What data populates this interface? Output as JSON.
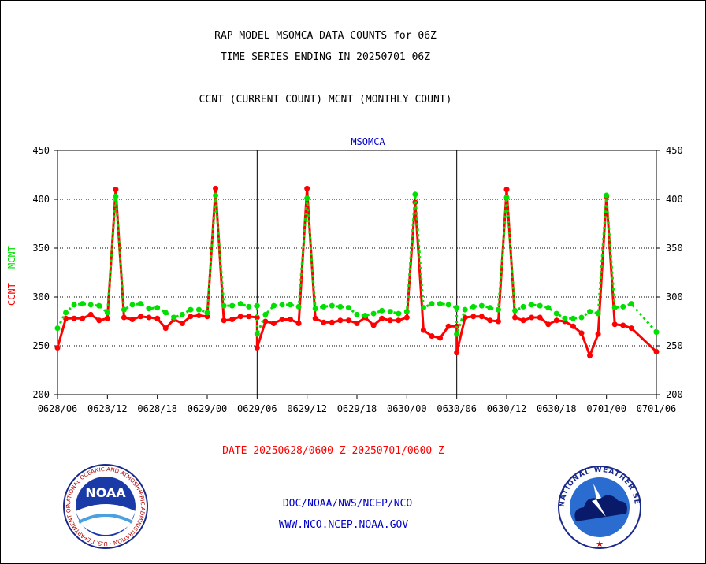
{
  "header": {
    "title_line1": "RAP MODEL MSOMCA DATA COUNTS for 06Z",
    "title_line2": "TIME SERIES ENDING IN 20250701 06Z",
    "subtitle": "CCNT (CURRENT COUNT) MCNT (MONTHLY COUNT)"
  },
  "footer": {
    "date_range": "DATE 20250628/0600 Z-20250701/0600 Z",
    "org": "DOC/NOAA/NWS/NCEP/NCO",
    "url": "WWW.NCO.NCEP.NOAA.GOV"
  },
  "logos": {
    "left": {
      "text": "NOAA",
      "ring_text": "NATIONAL OCEANIC AND ATMOSPHERIC ADMINISTRATION · U.S. DEPARTMENT OF COMMERCE"
    },
    "right": {
      "ring_text": "NATIONAL WEATHER SERVICE"
    }
  },
  "colors": {
    "ccnt": "#ff0000",
    "mcnt": "#00e000",
    "title": "#000000",
    "date": "#ff0000",
    "footer": "#0000cc",
    "plot_title": "#0000cc"
  },
  "chart_data": {
    "type": "line",
    "title": "MSOMCA",
    "ylabel_ccnt": "CCNT",
    "ylabel_mcnt": "MCNT",
    "ylim": [
      200,
      450
    ],
    "yticks": [
      200,
      250,
      300,
      350,
      400,
      450
    ],
    "x_tick_labels": [
      "0628/06",
      "0628/12",
      "0628/18",
      "0629/00",
      "0629/06",
      "0629/12",
      "0629/18",
      "0630/00",
      "0630/06",
      "0630/12",
      "0630/18",
      "0701/00",
      "0701/06"
    ],
    "x_hours_range": [
      0,
      72
    ],
    "grid": true,
    "series": [
      {
        "name": "CCNT",
        "color": "#ff0000",
        "values": [
          248,
          278,
          278,
          278,
          282,
          276,
          278,
          410,
          279,
          277,
          280,
          279,
          278,
          268,
          277,
          273,
          280,
          281,
          280,
          411,
          276,
          277,
          280,
          280,
          279,
          248,
          275,
          273,
          277,
          277,
          273,
          411,
          278,
          274,
          274,
          276,
          276,
          273,
          279,
          271,
          278,
          276,
          276,
          279,
          397,
          266,
          260,
          258,
          270,
          270,
          243,
          279,
          280,
          280,
          276,
          275,
          410,
          279,
          276,
          279,
          279,
          272,
          276,
          275,
          270,
          263,
          240,
          262,
          403,
          272,
          271,
          268,
          244
        ],
        "x": [
          0,
          1,
          2,
          3,
          4,
          5,
          6,
          7,
          8,
          9,
          10,
          11,
          12,
          13,
          14,
          15,
          16,
          17,
          18,
          19,
          20,
          21,
          22,
          23,
          24,
          24,
          25,
          26,
          27,
          28,
          29,
          30,
          31,
          32,
          33,
          34,
          35,
          36,
          37,
          38,
          39,
          40,
          41,
          42,
          43,
          44,
          45,
          46,
          47,
          48,
          48,
          49,
          50,
          51,
          52,
          53,
          54,
          55,
          56,
          57,
          58,
          59,
          60,
          61,
          62,
          63,
          64,
          65,
          66,
          67,
          68,
          69,
          72
        ]
      },
      {
        "name": "MCNT",
        "color": "#00e000",
        "values": [
          268,
          284,
          292,
          293,
          292,
          291,
          284,
          403,
          287,
          292,
          293,
          288,
          289,
          284,
          279,
          282,
          287,
          287,
          284,
          404,
          291,
          291,
          293,
          290,
          291,
          262,
          282,
          291,
          292,
          292,
          290,
          401,
          288,
          290,
          291,
          290,
          289,
          282,
          281,
          283,
          286,
          285,
          283,
          285,
          405,
          289,
          293,
          293,
          292,
          289,
          262,
          287,
          290,
          291,
          289,
          287,
          402,
          286,
          290,
          292,
          291,
          289,
          283,
          278,
          278,
          279,
          285,
          283,
          404,
          289,
          290,
          293,
          264
        ],
        "x": [
          0,
          1,
          2,
          3,
          4,
          5,
          6,
          7,
          8,
          9,
          10,
          11,
          12,
          13,
          14,
          15,
          16,
          17,
          18,
          19,
          20,
          21,
          22,
          23,
          24,
          24,
          25,
          26,
          27,
          28,
          29,
          30,
          31,
          32,
          33,
          34,
          35,
          36,
          37,
          38,
          39,
          40,
          41,
          42,
          43,
          44,
          45,
          46,
          47,
          48,
          48,
          49,
          50,
          51,
          52,
          53,
          54,
          55,
          56,
          57,
          58,
          59,
          60,
          61,
          62,
          63,
          64,
          65,
          66,
          67,
          68,
          69,
          72
        ]
      }
    ]
  }
}
